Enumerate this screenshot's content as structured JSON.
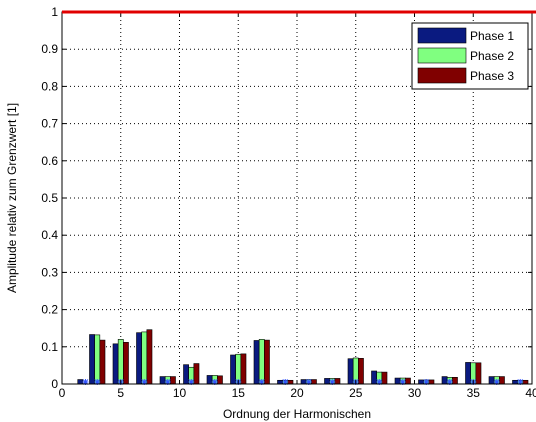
{
  "chart_data": {
    "type": "bar",
    "xlabel": "Ordnung der Harmonischen",
    "ylabel": "Amplitude relativ zum Grenzwert [1]",
    "xlim": [
      0,
      40
    ],
    "ylim": [
      0,
      1
    ],
    "xticks": [
      0,
      5,
      10,
      15,
      20,
      25,
      30,
      35,
      40
    ],
    "yticks": [
      0,
      0.1,
      0.2,
      0.3,
      0.4,
      0.5,
      0.6,
      0.7,
      0.8,
      0.9,
      1
    ],
    "grid": true,
    "legend_position": "top-right",
    "limit_line": {
      "y": 1,
      "color": "#e00000"
    },
    "marker_color": "#3355ff",
    "categories": [
      2,
      3,
      5,
      7,
      9,
      11,
      13,
      15,
      17,
      19,
      21,
      23,
      25,
      27,
      29,
      31,
      33,
      35,
      37,
      39
    ],
    "series": [
      {
        "name": "Phase 1",
        "color": "#0a1a80",
        "values": [
          0.012,
          0.133,
          0.108,
          0.138,
          0.02,
          0.052,
          0.023,
          0.078,
          0.117,
          0.01,
          0.012,
          0.015,
          0.068,
          0.035,
          0.016,
          0.011,
          0.02,
          0.058,
          0.02,
          0.01
        ]
      },
      {
        "name": "Phase 2",
        "color": "#80ff80",
        "values": [
          0.0,
          0.132,
          0.12,
          0.14,
          0.02,
          0.045,
          0.023,
          0.08,
          0.12,
          0.01,
          0.012,
          0.015,
          0.07,
          0.032,
          0.016,
          0.011,
          0.018,
          0.057,
          0.02,
          0.01
        ]
      },
      {
        "name": "Phase 3",
        "color": "#800000",
        "values": [
          0.0,
          0.118,
          0.112,
          0.146,
          0.02,
          0.055,
          0.022,
          0.081,
          0.118,
          0.01,
          0.012,
          0.015,
          0.069,
          0.032,
          0.016,
          0.011,
          0.018,
          0.057,
          0.02,
          0.01
        ]
      }
    ]
  }
}
